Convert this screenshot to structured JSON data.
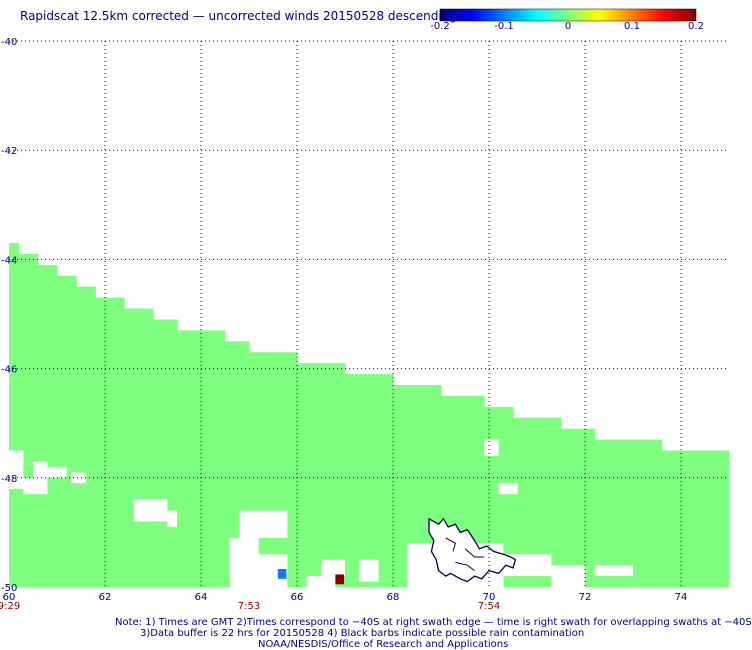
{
  "title": "Rapidscat 12.5km corrected — uncorrected winds 20150528 descending",
  "colorbar": {
    "labels": [
      "-0.2",
      "-0.1",
      "0",
      "0.1",
      "0.2"
    ],
    "colors": [
      "#00007f",
      "#0000ff",
      "#0080ff",
      "#00ffff",
      "#80ff80",
      "#ffff00",
      "#ff8000",
      "#ff0000",
      "#7f0000"
    ]
  },
  "colors": {
    "fill": "#7fff7f",
    "grid": "#000080",
    "axis_text": "#000080",
    "time_text": "#8b0000",
    "coast": "#00004a"
  },
  "chart_data": {
    "type": "heatmap",
    "title": "Rapidscat 12.5km corrected — uncorrected winds 20150528 descending",
    "xlim": [
      60,
      75
    ],
    "ylim": [
      -50,
      -40
    ],
    "x_ticks": [
      60,
      62,
      64,
      66,
      68,
      70,
      72,
      74
    ],
    "x_tick_labels": [
      "60",
      "62",
      "64",
      "66",
      "68",
      "70",
      "72",
      "74"
    ],
    "y_ticks": [
      -40,
      -42,
      -44,
      -46,
      -48,
      -50
    ],
    "y_tick_labels": [
      "-40",
      "-42",
      "-44",
      "-46",
      "-48",
      "-50"
    ],
    "grid": true,
    "time_labels": [
      {
        "lon": 60,
        "text": "9:29"
      },
      {
        "lon": 65,
        "text": "7:53"
      },
      {
        "lon": 70,
        "text": "7:54"
      }
    ],
    "swath_top_edge": [
      {
        "lon_from": 60.0,
        "lon_to": 60.2,
        "lat": -43.7
      },
      {
        "lon_from": 60.2,
        "lon_to": 60.6,
        "lat": -43.9
      },
      {
        "lon_from": 60.6,
        "lon_to": 61.0,
        "lat": -44.1
      },
      {
        "lon_from": 61.0,
        "lon_to": 61.4,
        "lat": -44.3
      },
      {
        "lon_from": 61.4,
        "lon_to": 61.8,
        "lat": -44.5
      },
      {
        "lon_from": 61.8,
        "lon_to": 62.4,
        "lat": -44.7
      },
      {
        "lon_from": 62.4,
        "lon_to": 63.0,
        "lat": -44.9
      },
      {
        "lon_from": 63.0,
        "lon_to": 63.5,
        "lat": -45.1
      },
      {
        "lon_from": 63.5,
        "lon_to": 64.5,
        "lat": -45.3
      },
      {
        "lon_from": 64.5,
        "lon_to": 65.0,
        "lat": -45.5
      },
      {
        "lon_from": 65.0,
        "lon_to": 66.0,
        "lat": -45.7
      },
      {
        "lon_from": 66.0,
        "lon_to": 67.0,
        "lat": -45.9
      },
      {
        "lon_from": 67.0,
        "lon_to": 68.0,
        "lat": -46.1
      },
      {
        "lon_from": 68.0,
        "lon_to": 69.0,
        "lat": -46.3
      },
      {
        "lon_from": 69.0,
        "lon_to": 69.9,
        "lat": -46.5
      },
      {
        "lon_from": 69.9,
        "lon_to": 70.5,
        "lat": -46.7
      },
      {
        "lon_from": 70.5,
        "lon_to": 71.5,
        "lat": -46.9
      },
      {
        "lon_from": 71.5,
        "lon_to": 72.2,
        "lat": -47.1
      },
      {
        "lon_from": 72.2,
        "lon_to": 73.6,
        "lat": -47.3
      },
      {
        "lon_from": 73.6,
        "lon_to": 75.0,
        "lat": -47.5
      }
    ],
    "no_data_regions": [
      {
        "lon": [
          60.0,
          60.3
        ],
        "lat": [
          -48.2,
          -47.5
        ]
      },
      {
        "lon": [
          60.0,
          60.1
        ],
        "lat": [
          -48.2,
          -47.7
        ]
      },
      {
        "lon": [
          60.3,
          60.8
        ],
        "lat": [
          -48.3,
          -48.0
        ]
      },
      {
        "lon": [
          60.5,
          60.8
        ],
        "lat": [
          -48.0,
          -47.7
        ]
      },
      {
        "lon": [
          60.8,
          61.2
        ],
        "lat": [
          -48.0,
          -47.8
        ]
      },
      {
        "lon": [
          61.3,
          61.6
        ],
        "lat": [
          -48.1,
          -47.9
        ]
      },
      {
        "lon": [
          62.6,
          63.3
        ],
        "lat": [
          -48.8,
          -48.4
        ]
      },
      {
        "lon": [
          63.3,
          63.5
        ],
        "lat": [
          -48.9,
          -48.6
        ]
      },
      {
        "lon": [
          64.6,
          65.2
        ],
        "lat": [
          -50.0,
          -49.1
        ]
      },
      {
        "lon": [
          64.8,
          65.8
        ],
        "lat": [
          -49.1,
          -48.6
        ]
      },
      {
        "lon": [
          65.2,
          65.8
        ],
        "lat": [
          -50.0,
          -49.4
        ]
      },
      {
        "lon": [
          66.2,
          66.8
        ],
        "lat": [
          -50.0,
          -49.8
        ]
      },
      {
        "lon": [
          66.5,
          67.0
        ],
        "lat": [
          -49.8,
          -49.5
        ]
      },
      {
        "lon": [
          67.3,
          67.7
        ],
        "lat": [
          -49.9,
          -49.5
        ]
      },
      {
        "lon": [
          68.3,
          70.3
        ],
        "lat": [
          -50.0,
          -49.2
        ]
      },
      {
        "lon": [
          70.2,
          71.3
        ],
        "lat": [
          -49.8,
          -49.4
        ]
      },
      {
        "lon": [
          71.3,
          72.0
        ],
        "lat": [
          -50.0,
          -49.6
        ]
      },
      {
        "lon": [
          72.2,
          73.0
        ],
        "lat": [
          -49.8,
          -49.6
        ]
      },
      {
        "lon": [
          69.9,
          70.2
        ],
        "lat": [
          -47.6,
          -47.3
        ]
      },
      {
        "lon": [
          70.2,
          70.6
        ],
        "lat": [
          -48.3,
          -48.1
        ]
      }
    ],
    "value_cells": [
      {
        "lon": 65.6,
        "lat": -49.85,
        "value": -0.12
      },
      {
        "lon": 66.8,
        "lat": -49.95,
        "value": 0.2
      }
    ],
    "notes": [
      "Note: 1) Times are GMT 2)Times correspond to −40S at right swath edge — time is right swath for overlapping swaths at −40S",
      "3)Data buffer is 22 hrs for 20150528 4) Black barbs indicate possible rain contamination",
      "NOAA/NESDIS/Office of Research and Applications"
    ]
  }
}
